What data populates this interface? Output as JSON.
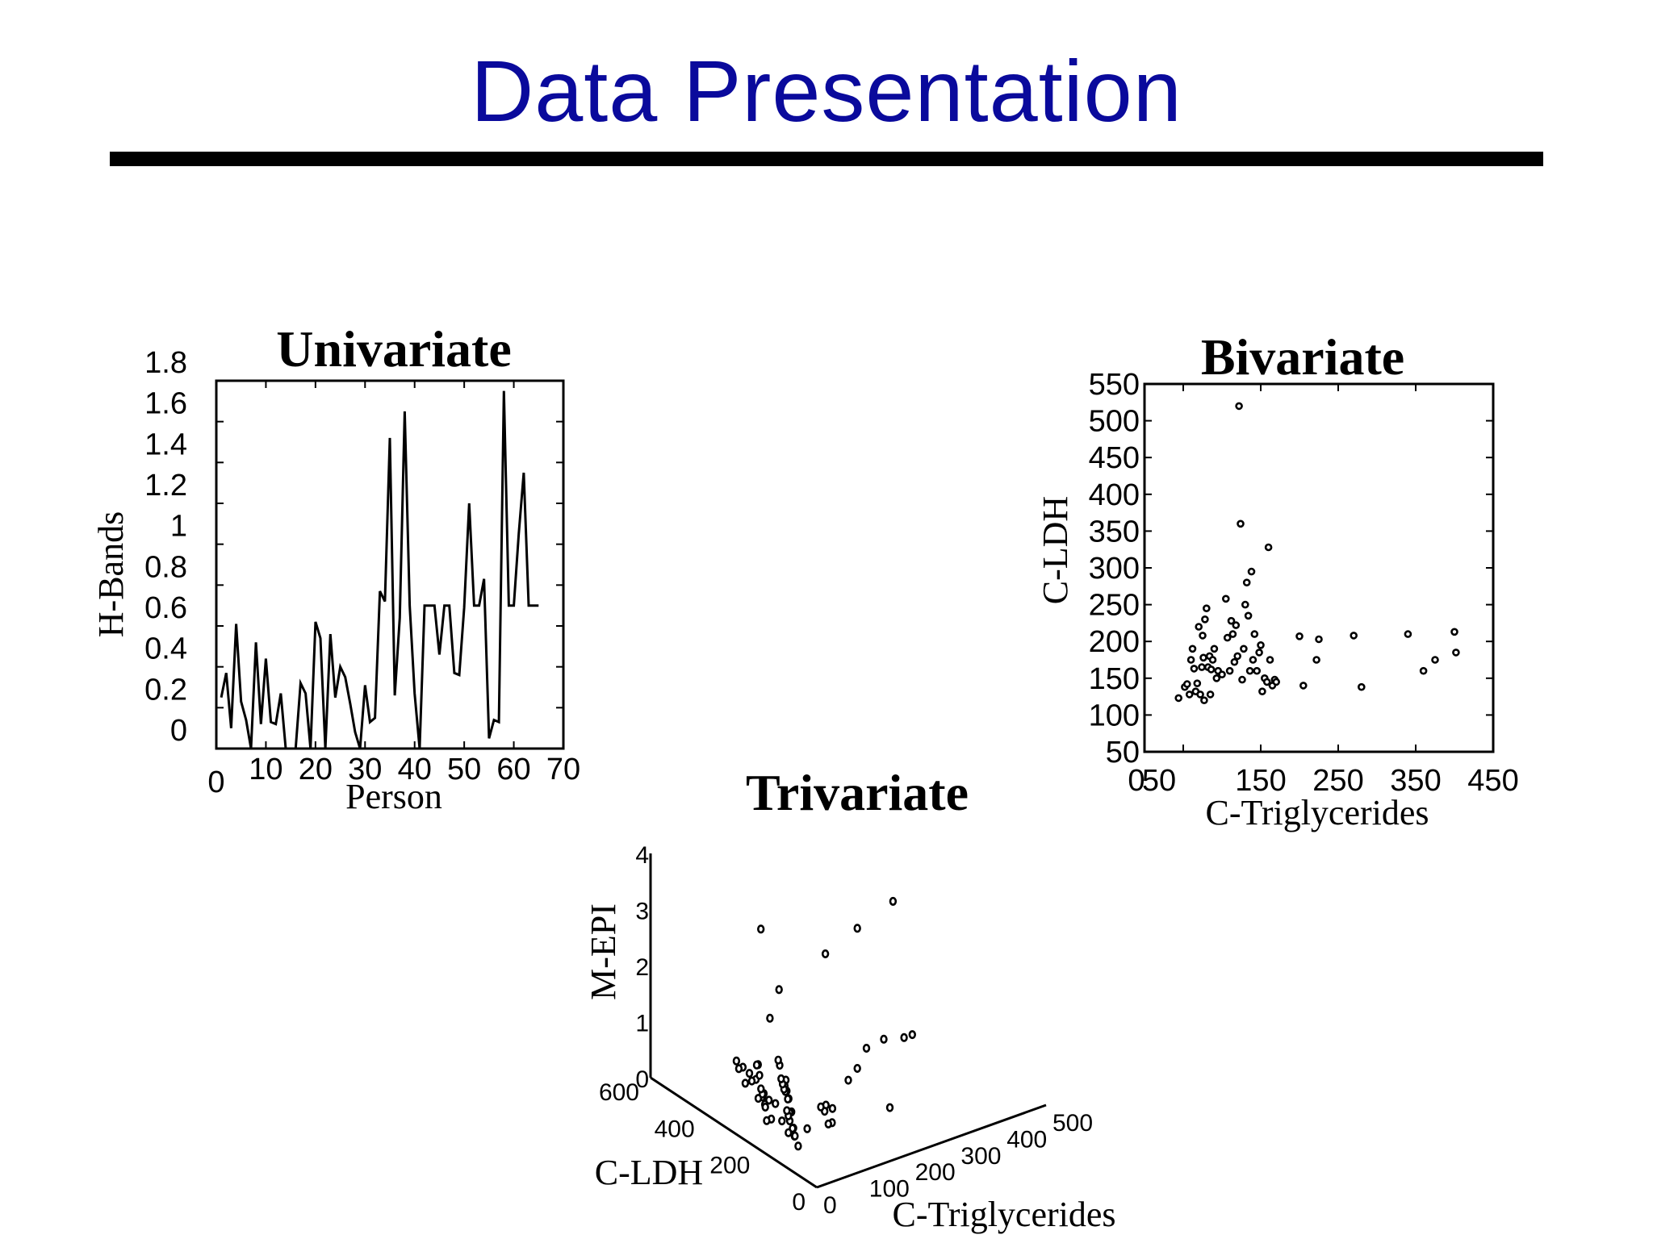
{
  "slide": {
    "title": "Data Presentation"
  },
  "chart_data": [
    {
      "type": "line",
      "title": "Univariate",
      "xlabel": "Person",
      "ylabel": "H-Bands",
      "xlim": [
        0,
        70
      ],
      "ylim": [
        0,
        1.8
      ],
      "xticks": [
        0,
        10,
        20,
        30,
        40,
        50,
        60,
        70
      ],
      "xtick_labels": [
        "0",
        "10",
        "20",
        "30",
        "40",
        "50",
        "60",
        "70"
      ],
      "yticks": [
        0,
        0.2,
        0.4,
        0.6,
        0.8,
        1,
        1.2,
        1.4,
        1.6,
        1.8
      ],
      "ytick_labels": [
        "0",
        "0.2",
        "0.4",
        "0.6",
        "0.8",
        "1",
        "1.2",
        "1.4",
        "1.6",
        "1.8"
      ],
      "series": [
        {
          "name": "H-Bands",
          "x": [
            1,
            2,
            3,
            4,
            5,
            6,
            7,
            8,
            9,
            10,
            11,
            12,
            13,
            14,
            15,
            16,
            17,
            18,
            19,
            20,
            21,
            22,
            23,
            24,
            25,
            26,
            27,
            28,
            29,
            30,
            31,
            32,
            33,
            34,
            35,
            36,
            37,
            38,
            39,
            40,
            41,
            42,
            43,
            44,
            45,
            46,
            47,
            48,
            49,
            50,
            51,
            52,
            53,
            54,
            55,
            56,
            57,
            58,
            59,
            60,
            61,
            62,
            63,
            64,
            65
          ],
          "y": [
            0.25,
            0.37,
            0.1,
            0.61,
            0.23,
            0.14,
            0,
            0.52,
            0.12,
            0.44,
            0.13,
            0.12,
            0.27,
            0,
            0,
            0,
            0.32,
            0.27,
            0,
            0.62,
            0.54,
            0,
            0.56,
            0.25,
            0.4,
            0.35,
            0.22,
            0.08,
            0,
            0.31,
            0.13,
            0.15,
            0.77,
            0.72,
            1.52,
            0.26,
            0.64,
            1.65,
            0.7,
            0.27,
            0,
            0.7,
            0.7,
            0.7,
            0.46,
            0.7,
            0.7,
            0.37,
            0.36,
            0.69,
            1.2,
            0.7,
            0.7,
            0.83,
            0.05,
            0.14,
            0.13,
            1.75,
            0.7,
            0.7,
            1.05,
            1.35,
            0.7,
            0.7,
            0.7
          ]
        }
      ]
    },
    {
      "type": "scatter",
      "title": "Bivariate",
      "xlabel": "C-Triglycerides",
      "ylabel": "C-LDH",
      "xlim": [
        0,
        450
      ],
      "ylim": [
        50,
        550
      ],
      "xticks": [
        0,
        50,
        150,
        250,
        350,
        450
      ],
      "xtick_labels": [
        "0",
        "50",
        "150",
        "250",
        "350",
        "450"
      ],
      "yticks": [
        50,
        100,
        150,
        200,
        250,
        300,
        350,
        400,
        450,
        500,
        550
      ],
      "ytick_labels": [
        "50",
        "100",
        "150",
        "200",
        "250",
        "300",
        "350",
        "400",
        "450",
        "500",
        "550"
      ],
      "x": [
        44,
        52,
        55,
        58,
        60,
        62,
        64,
        66,
        68,
        70,
        72,
        74,
        75,
        76,
        77,
        78,
        80,
        82,
        84,
        85,
        86,
        88,
        90,
        93,
        95,
        100,
        105,
        107,
        110,
        112,
        114,
        116,
        118,
        120,
        122,
        124,
        126,
        128,
        130,
        132,
        134,
        136,
        138,
        140,
        142,
        145,
        148,
        150,
        152,
        155,
        158,
        160,
        162,
        165,
        168,
        170,
        200,
        205,
        222,
        225,
        270,
        280,
        340,
        360,
        375,
        400,
        402
      ],
      "y": [
        123,
        138,
        142,
        128,
        175,
        190,
        163,
        132,
        143,
        220,
        128,
        165,
        208,
        178,
        120,
        230,
        245,
        165,
        180,
        128,
        162,
        175,
        190,
        150,
        160,
        155,
        258,
        205,
        160,
        228,
        210,
        172,
        222,
        180,
        520,
        360,
        148,
        190,
        250,
        280,
        235,
        160,
        295,
        175,
        210,
        160,
        185,
        195,
        132,
        150,
        145,
        328,
        175,
        140,
        148,
        145,
        207,
        140,
        175,
        203,
        208,
        138,
        210,
        160,
        175,
        213,
        185
      ]
    },
    {
      "type": "scatter",
      "title": "Trivariate",
      "xlabel": "C-Triglycerides",
      "ylabel": "C-LDH",
      "zlabel": "M-EPI",
      "xlim": [
        0,
        500
      ],
      "ylim": [
        0,
        600
      ],
      "zlim": [
        0,
        4
      ],
      "xticks": [
        0,
        100,
        200,
        300,
        400,
        500
      ],
      "xtick_labels": [
        "0",
        "100",
        "200",
        "300",
        "400",
        "500"
      ],
      "yticks": [
        0,
        200,
        400,
        600
      ],
      "ytick_labels": [
        "0",
        "200",
        "400",
        "600"
      ],
      "zticks": [
        0,
        1,
        2,
        3,
        4
      ],
      "ztick_labels": [
        "0",
        "1",
        "2",
        "3",
        "4"
      ],
      "x": [
        50,
        60,
        70,
        80,
        90,
        100,
        110,
        120,
        130,
        140,
        150,
        160,
        55,
        65,
        75,
        85,
        95,
        105,
        115,
        125,
        135,
        145,
        155,
        165,
        70,
        80,
        90,
        100,
        110,
        120,
        130,
        140,
        150,
        160,
        60,
        75,
        90,
        105,
        120,
        135,
        150,
        165,
        80,
        95,
        110,
        125,
        140,
        155,
        170,
        185,
        200,
        250,
        300,
        350,
        400,
        420,
        450,
        200,
        300,
        420,
        150,
        200,
        250,
        100,
        250
      ],
      "y": [
        150,
        180,
        200,
        220,
        240,
        260,
        280,
        300,
        320,
        340,
        360,
        380,
        170,
        210,
        250,
        290,
        330,
        370,
        410,
        450,
        490,
        530,
        200,
        240,
        280,
        320,
        360,
        400,
        440,
        480,
        160,
        190,
        220,
        250,
        280,
        310,
        340,
        370,
        400,
        430,
        460,
        490,
        230,
        260,
        290,
        320,
        350,
        380,
        410,
        440,
        470,
        300,
        350,
        400,
        420,
        380,
        400,
        300,
        350,
        420,
        450,
        500,
        550,
        200,
        150
      ],
      "z": [
        0.1,
        0.15,
        0.2,
        0.1,
        0.3,
        0.2,
        0.1,
        0.25,
        0.15,
        0.2,
        0.3,
        0.1,
        0.2,
        0.1,
        0.15,
        0.3,
        0.2,
        0.1,
        0.25,
        0.2,
        0.15,
        0.1,
        0.3,
        0.2,
        0.1,
        0.2,
        0.15,
        0.3,
        0.1,
        0.2,
        0.25,
        0.1,
        0.2,
        0.15,
        0.1,
        0.2,
        0.3,
        0.15,
        0.1,
        0.2,
        0.25,
        0.1,
        0.2,
        0.15,
        0.1,
        0.3,
        0.2,
        0.15,
        0.1,
        0.2,
        0.15,
        0.2,
        0.1,
        0.15,
        0.1,
        0.2,
        0.1,
        2.6,
        2.6,
        2.5,
        2.7,
        0.8,
        1.0,
        0.1,
        0.2
      ]
    }
  ]
}
